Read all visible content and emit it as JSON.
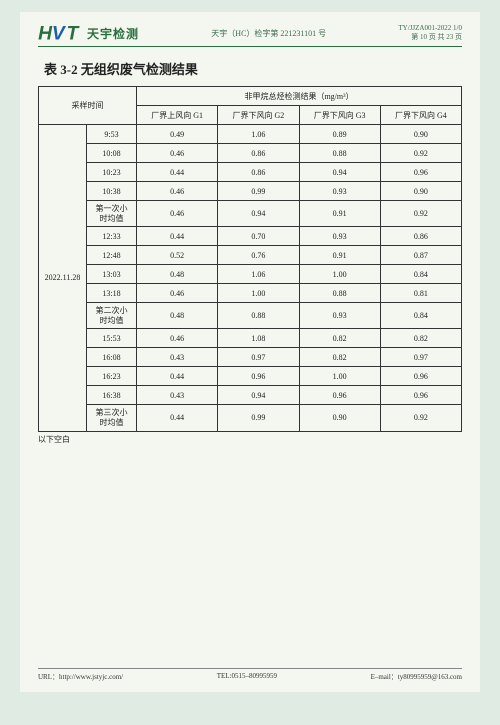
{
  "header": {
    "logo_cn": "天宇检测",
    "center": "天宇（HC）检字第 221231101 号",
    "right_line1": "TY/JJZA001-2022 1/0",
    "right_line2": "第 10 页 共 23 页"
  },
  "title": "表 3-2 无组织废气检测结果",
  "table": {
    "sampling_time_label": "采样时间",
    "result_header": "非甲烷总烃检测结果（mg/m³）",
    "cols": [
      "厂界上风向 G1",
      "厂界下风向 G2",
      "厂界下风向 G3",
      "厂界下风向 G4"
    ],
    "date": "2022.11.28",
    "rows": [
      {
        "t": "9:53",
        "v": [
          "0.49",
          "1.06",
          "0.89",
          "0.90"
        ]
      },
      {
        "t": "10:08",
        "v": [
          "0.46",
          "0.86",
          "0.88",
          "0.92"
        ]
      },
      {
        "t": "10:23",
        "v": [
          "0.44",
          "0.86",
          "0.94",
          "0.96"
        ]
      },
      {
        "t": "10:38",
        "v": [
          "0.46",
          "0.99",
          "0.93",
          "0.90"
        ]
      },
      {
        "t": "第一次小时均值",
        "v": [
          "0.46",
          "0.94",
          "0.91",
          "0.92"
        ]
      },
      {
        "t": "12:33",
        "v": [
          "0.44",
          "0.70",
          "0.93",
          "0.86"
        ]
      },
      {
        "t": "12:48",
        "v": [
          "0.52",
          "0.76",
          "0.91",
          "0.87"
        ]
      },
      {
        "t": "13:03",
        "v": [
          "0.48",
          "1.06",
          "1.00",
          "0.84"
        ]
      },
      {
        "t": "13:18",
        "v": [
          "0.46",
          "1.00",
          "0.88",
          "0.81"
        ]
      },
      {
        "t": "第二次小时均值",
        "v": [
          "0.48",
          "0.88",
          "0.93",
          "0.84"
        ]
      },
      {
        "t": "15:53",
        "v": [
          "0.46",
          "1.08",
          "0.82",
          "0.82"
        ]
      },
      {
        "t": "16:08",
        "v": [
          "0.43",
          "0.97",
          "0.82",
          "0.97"
        ]
      },
      {
        "t": "16:23",
        "v": [
          "0.44",
          "0.96",
          "1.00",
          "0.96"
        ]
      },
      {
        "t": "16:38",
        "v": [
          "0.43",
          "0.94",
          "0.96",
          "0.96"
        ]
      },
      {
        "t": "第三次小时均值",
        "v": [
          "0.44",
          "0.99",
          "0.90",
          "0.92"
        ]
      }
    ]
  },
  "blank_below": "以下空白",
  "footer": {
    "url_label": "URL：",
    "url": "http://www.jstyjc.com/",
    "tel_label": "TEL:",
    "tel": "0515–80995959",
    "email_label": "E–mail：",
    "email": "ty80995959@163.com"
  }
}
